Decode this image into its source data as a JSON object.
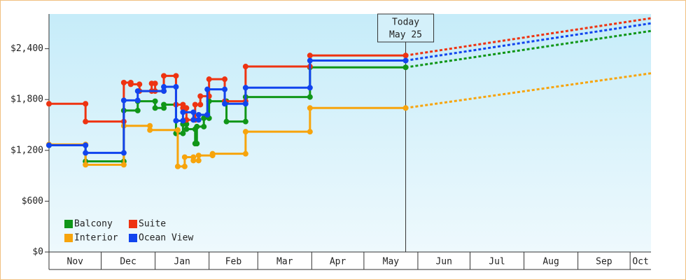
{
  "chart_data": {
    "type": "line",
    "ylim": [
      0,
      2810
    ],
    "yticks": [
      {
        "value": 0,
        "label": "$0"
      },
      {
        "value": 600,
        "label": "$600"
      },
      {
        "value": 1200,
        "label": "$1,200"
      },
      {
        "value": 1800,
        "label": "$1,800"
      },
      {
        "value": 2400,
        "label": "$2,400"
      }
    ],
    "xlim": [
      0,
      346
    ],
    "xticks": [
      {
        "value": 0,
        "label": "Nov"
      },
      {
        "value": 30,
        "label": "Dec"
      },
      {
        "value": 61,
        "label": "Jan"
      },
      {
        "value": 92,
        "label": "Feb"
      },
      {
        "value": 120,
        "label": "Mar"
      },
      {
        "value": 151,
        "label": "Apr"
      },
      {
        "value": 181,
        "label": "May"
      },
      {
        "value": 212,
        "label": "Jun"
      },
      {
        "value": 242,
        "label": "Jul"
      },
      {
        "value": 273,
        "label": "Aug"
      },
      {
        "value": 304,
        "label": "Sep"
      },
      {
        "value": 334,
        "label": "Oct"
      }
    ],
    "annotation": {
      "x": 205,
      "lines": [
        "Today",
        "May 25"
      ]
    },
    "legend": "bottom-left",
    "series": [
      {
        "name": "Balcony",
        "color": "#109618",
        "x": [
          0,
          21,
          21,
          43,
          43,
          51,
          51,
          61,
          61,
          66,
          66,
          73,
          73,
          77,
          77,
          79,
          79,
          84,
          84,
          85,
          85,
          89,
          89,
          92,
          92,
          102,
          102,
          113,
          113,
          150,
          150,
          205
        ],
        "values": [
          1260,
          1260,
          1070,
          1070,
          1670,
          1670,
          1780,
          1780,
          1700,
          1700,
          1740,
          1740,
          1400,
          1400,
          1510,
          1510,
          1450,
          1450,
          1280,
          1280,
          1480,
          1480,
          1580,
          1580,
          1780,
          1780,
          1540,
          1540,
          1830,
          1830,
          2180,
          2180
        ],
        "projection": {
          "x": [
            205,
            346
          ],
          "values": [
            2180,
            2610
          ]
        }
      },
      {
        "name": "Suite",
        "color": "#ee3311",
        "x": [
          0,
          21,
          21,
          43,
          43,
          47,
          47,
          52,
          52,
          59,
          59,
          61,
          61,
          66,
          66,
          73,
          73,
          77,
          77,
          79,
          79,
          84,
          84,
          87,
          87,
          92,
          92,
          101,
          101,
          113,
          113,
          150,
          150,
          205
        ],
        "values": [
          1750,
          1750,
          1540,
          1540,
          2000,
          2000,
          1980,
          1980,
          1900,
          1900,
          1990,
          1990,
          1900,
          1900,
          2080,
          2080,
          1740,
          1740,
          1700,
          1700,
          1560,
          1560,
          1740,
          1740,
          1840,
          1840,
          2040,
          2040,
          1780,
          1780,
          2190,
          2190,
          2320,
          2320
        ],
        "projection": {
          "x": [
            205,
            346
          ],
          "values": [
            2320,
            2760
          ]
        }
      },
      {
        "name": "Interior",
        "color": "#f7a40c",
        "x": [
          0,
          21,
          21,
          43,
          43,
          58,
          58,
          74,
          74,
          78,
          78,
          83,
          83,
          86,
          86,
          94,
          94,
          113,
          113,
          150,
          150,
          205
        ],
        "values": [
          1270,
          1270,
          1030,
          1030,
          1490,
          1490,
          1440,
          1440,
          1010,
          1010,
          1120,
          1120,
          1080,
          1080,
          1140,
          1140,
          1160,
          1160,
          1420,
          1420,
          1700,
          1700
        ],
        "projection": {
          "x": [
            205,
            346
          ],
          "values": [
            1700,
            2110
          ]
        }
      },
      {
        "name": "Ocean View",
        "color": "#1144ee",
        "x": [
          0,
          21,
          21,
          43,
          43,
          51,
          51,
          66,
          66,
          73,
          73,
          77,
          77,
          83,
          83,
          86,
          86,
          91,
          91,
          101,
          101,
          113,
          113,
          150,
          150,
          205
        ],
        "values": [
          1260,
          1260,
          1170,
          1170,
          1790,
          1790,
          1900,
          1900,
          1950,
          1950,
          1550,
          1550,
          1650,
          1650,
          1560,
          1560,
          1620,
          1620,
          1920,
          1920,
          1750,
          1750,
          1940,
          1940,
          2260,
          2260
        ],
        "projection": {
          "x": [
            205,
            346
          ],
          "values": [
            2260,
            2700
          ]
        }
      }
    ]
  }
}
